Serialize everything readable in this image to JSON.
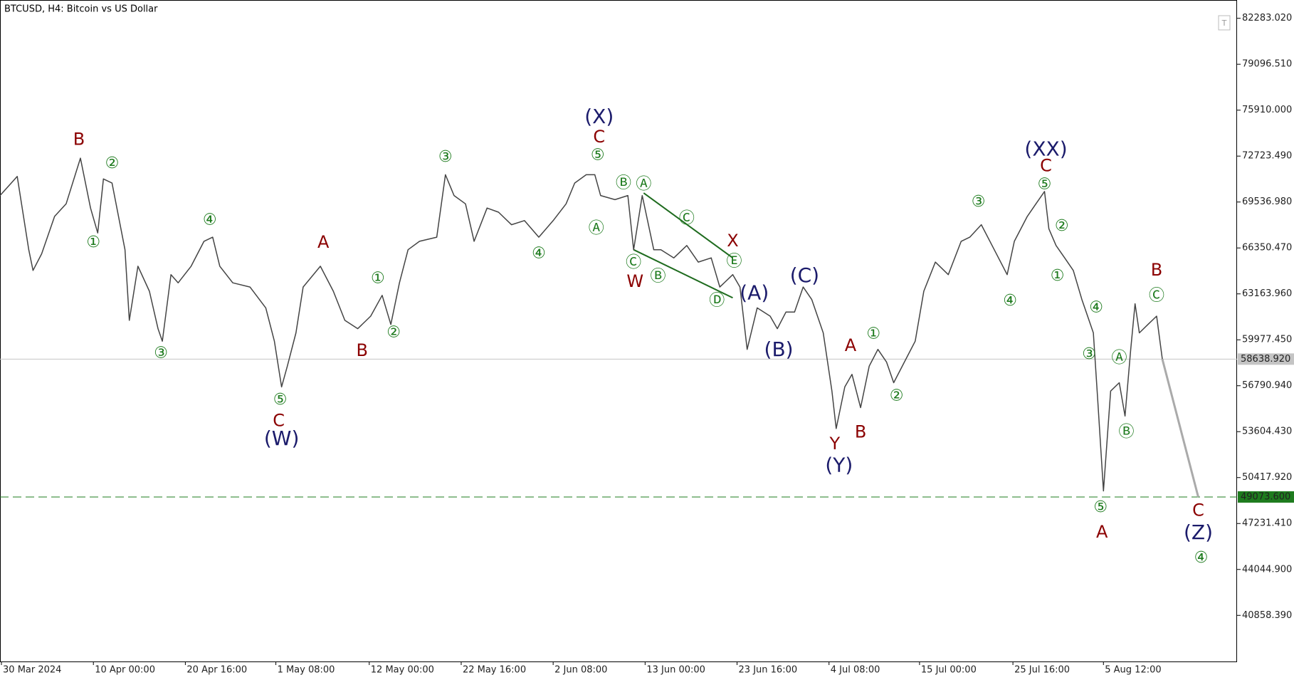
{
  "chart_data": {
    "type": "line",
    "title": "BTCUSD, H4:  Bitcoin vs US Dollar",
    "color": "#444444",
    "x": [
      0,
      12,
      20,
      23,
      29,
      38,
      46,
      56,
      63,
      68,
      72,
      78,
      87,
      90,
      96,
      104,
      110,
      113,
      119,
      124,
      133,
      142,
      148,
      153,
      162,
      174,
      185,
      191,
      196,
      200,
      206,
      211,
      223,
      232,
      240,
      249,
      258,
      266,
      272,
      278,
      284,
      292,
      304,
      310,
      316,
      324,
      330,
      339,
      347,
      356,
      365,
      375,
      385,
      394,
      400,
      408,
      414,
      418,
      428,
      437,
      441,
      447,
      455,
      460,
      469,
      478,
      486,
      495,
      501,
      510,
      515,
      520,
      527,
      536,
      541,
      547,
      553,
      559,
      565,
      573,
      579,
      582,
      588,
      593,
      599,
      605,
      611,
      617,
      622,
      631,
      637,
      643,
      651,
      660,
      669,
      675,
      683,
      692,
      701,
      706,
      715,
      721,
      727,
      730,
      735,
      741,
      747,
      753,
      761,
      764,
      768,
      773,
      779,
      783,
      787,
      790,
      793,
      799,
      805,
      809
    ],
    "values": [
      69990,
      71310,
      66230,
      64790,
      65940,
      68540,
      69410,
      72580,
      69120,
      67390,
      71140,
      70850,
      66230,
      61330,
      65080,
      63350,
      60750,
      59880,
      64500,
      63930,
      65080,
      66810,
      67100,
      65080,
      63930,
      63640,
      62190,
      59880,
      56710,
      58150,
      60460,
      63640,
      65080,
      63350,
      61330,
      60750,
      61620,
      63060,
      61040,
      63930,
      66230,
      66810,
      67100,
      71430,
      69990,
      69410,
      66810,
      69120,
      68830,
      67960,
      68250,
      67100,
      68250,
      69410,
      70850,
      71430,
      71430,
      69990,
      69700,
      69990,
      66230,
      69990,
      66230,
      66230,
      65660,
      66520,
      65370,
      65660,
      63640,
      64500,
      63640,
      59310,
      62190,
      61620,
      60750,
      61900,
      61900,
      63640,
      62770,
      60460,
      56420,
      53820,
      56710,
      57580,
      55270,
      58150,
      59310,
      58440,
      57000,
      58730,
      59880,
      63350,
      65370,
      64500,
      66810,
      67100,
      67960,
      66230,
      64500,
      66810,
      68540,
      69410,
      70270,
      67680,
      66520,
      65660,
      64790,
      62770,
      60460,
      55840,
      49490,
      56420,
      57000,
      54690,
      59310,
      62480,
      60460,
      61040,
      61620,
      58640
    ],
    "forecast": {
      "x": [
        809,
        834
      ],
      "values": [
        58640,
        49073.6
      ],
      "color": "#aaaaaa"
    },
    "xlim": [
      0,
      861
    ],
    "ylim": [
      37660,
      83553
    ],
    "xticks": [
      {
        "value": 1,
        "label": "30 Mar 2024"
      },
      {
        "value": 65,
        "label": "10 Apr 00:00"
      },
      {
        "value": 129,
        "label": "20 Apr 16:00"
      },
      {
        "value": 192,
        "label": "1 May 08:00"
      },
      {
        "value": 257,
        "label": "12 May 00:00"
      },
      {
        "value": 321,
        "label": "22 May 16:00"
      },
      {
        "value": 385,
        "label": "2 Jun 08:00"
      },
      {
        "value": 449,
        "label": "13 Jun 00:00"
      },
      {
        "value": 513,
        "label": "23 Jun 16:00"
      },
      {
        "value": 577,
        "label": "4 Jul 08:00"
      },
      {
        "value": 640,
        "label": "15 Jul 00:00"
      },
      {
        "value": 705,
        "label": "25 Jul 16:00"
      },
      {
        "value": 768,
        "label": "5 Aug 12:00"
      }
    ],
    "yticks": [
      {
        "value": 82283.02,
        "label": "82283.020"
      },
      {
        "value": 79096.51,
        "label": "79096.510"
      },
      {
        "value": 75910,
        "label": "75910.000"
      },
      {
        "value": 72723.49,
        "label": "72723.490"
      },
      {
        "value": 69536.98,
        "label": "69536.980"
      },
      {
        "value": 66350.47,
        "label": "66350.470"
      },
      {
        "value": 63163.96,
        "label": "63163.960"
      },
      {
        "value": 59977.45,
        "label": "59977.450"
      },
      {
        "value": 56790.94,
        "label": "56790.940"
      },
      {
        "value": 53604.43,
        "label": "53604.430"
      },
      {
        "value": 50417.92,
        "label": "50417.920"
      },
      {
        "value": 47231.41,
        "label": "47231.410"
      },
      {
        "value": 44044.9,
        "label": "44044.900"
      },
      {
        "value": 40858.39,
        "label": "40858.390"
      }
    ],
    "price_line": {
      "value": 58638.92,
      "label": "58638.920",
      "color": "#c4c4c4"
    },
    "level_line": {
      "value": 49073.6,
      "label": "49073.600",
      "color": "#1e7b1e"
    },
    "trendlines": [
      {
        "x": [
          448,
          510
        ],
        "y": [
          70160,
          65660
        ],
        "color": "#1e6b1e"
      },
      {
        "x": [
          441,
          510
        ],
        "y": [
          66230,
          62890
        ],
        "color": "#1e6b1e"
      }
    ],
    "annotations": [
      {
        "text": "B",
        "x": 55,
        "y": 73850,
        "color": "#8b0000"
      },
      {
        "text": "②",
        "x": 78,
        "y": 72180,
        "color": "#1e7b1e"
      },
      {
        "text": "①",
        "x": 65,
        "y": 66700,
        "color": "#1e7b1e"
      },
      {
        "text": "③",
        "x": 112,
        "y": 59020,
        "color": "#1e7b1e"
      },
      {
        "text": "④",
        "x": 146,
        "y": 68260,
        "color": "#1e7b1e"
      },
      {
        "text": "A",
        "x": 225,
        "y": 66700,
        "color": "#8b0000"
      },
      {
        "text": "①",
        "x": 263,
        "y": 64210,
        "color": "#1e7b1e"
      },
      {
        "text": "B",
        "x": 252,
        "y": 59190,
        "color": "#8b0000"
      },
      {
        "text": "②",
        "x": 274,
        "y": 60460,
        "color": "#1e7b1e"
      },
      {
        "text": "⑤",
        "x": 195,
        "y": 55790,
        "color": "#1e7b1e"
      },
      {
        "text": "C",
        "x": 194,
        "y": 54340,
        "color": "#8b0000"
      },
      {
        "text": "(W)",
        "x": 196,
        "y": 53070,
        "color": "#1b1b6b"
      },
      {
        "text": "③",
        "x": 310,
        "y": 72640,
        "color": "#1e7b1e"
      },
      {
        "text": "④",
        "x": 375,
        "y": 65950,
        "color": "#1e7b1e"
      },
      {
        "text": "(X)",
        "x": 417,
        "y": 75410,
        "color": "#1b1b6b"
      },
      {
        "text": "C",
        "x": 417,
        "y": 74030,
        "color": "#8b0000"
      },
      {
        "text": "⑤",
        "x": 416,
        "y": 72760,
        "color": "#1e7b1e"
      },
      {
        "text": "Ⓐ",
        "x": 415,
        "y": 67680,
        "color": "#1e7b1e"
      },
      {
        "text": "Ⓑ",
        "x": 434,
        "y": 70800,
        "color": "#1e7b1e"
      },
      {
        "text": "Ⓐ",
        "x": 448,
        "y": 70740,
        "color": "#1e7b1e"
      },
      {
        "text": "Ⓒ",
        "x": 478,
        "y": 68370,
        "color": "#1e7b1e"
      },
      {
        "text": "X",
        "x": 510,
        "y": 66810,
        "color": "#8b0000"
      },
      {
        "text": "Ⓔ",
        "x": 511,
        "y": 65370,
        "color": "#1e7b1e"
      },
      {
        "text": "Ⓒ",
        "x": 441,
        "y": 65310,
        "color": "#1e7b1e"
      },
      {
        "text": "Ⓑ",
        "x": 458,
        "y": 64330,
        "color": "#1e7b1e"
      },
      {
        "text": "W",
        "x": 442,
        "y": 63980,
        "color": "#8b0000"
      },
      {
        "text": "Ⓓ",
        "x": 499,
        "y": 62660,
        "color": "#1e7b1e"
      },
      {
        "text": "(A)",
        "x": 525,
        "y": 63170,
        "color": "#1b1b6b"
      },
      {
        "text": "(C)",
        "x": 560,
        "y": 64390,
        "color": "#1b1b6b"
      },
      {
        "text": "(B)",
        "x": 542,
        "y": 59250,
        "color": "#1b1b6b"
      },
      {
        "text": "A",
        "x": 592,
        "y": 59540,
        "color": "#8b0000"
      },
      {
        "text": "①",
        "x": 608,
        "y": 60350,
        "color": "#1e7b1e"
      },
      {
        "text": "②",
        "x": 624,
        "y": 56070,
        "color": "#1e7b1e"
      },
      {
        "text": "Y",
        "x": 581,
        "y": 52730,
        "color": "#8b0000"
      },
      {
        "text": "B",
        "x": 599,
        "y": 53530,
        "color": "#8b0000"
      },
      {
        "text": "(Y)",
        "x": 584,
        "y": 51220,
        "color": "#1b1b6b"
      },
      {
        "text": "③",
        "x": 681,
        "y": 69530,
        "color": "#1e7b1e"
      },
      {
        "text": "④",
        "x": 703,
        "y": 62660,
        "color": "#1e7b1e"
      },
      {
        "text": "(XX)",
        "x": 728,
        "y": 73160,
        "color": "#1b1b6b"
      },
      {
        "text": "C",
        "x": 728,
        "y": 72010,
        "color": "#8b0000"
      },
      {
        "text": "⑤",
        "x": 727,
        "y": 70740,
        "color": "#1e7b1e"
      },
      {
        "text": "②",
        "x": 739,
        "y": 67850,
        "color": "#1e7b1e"
      },
      {
        "text": "①",
        "x": 736,
        "y": 64390,
        "color": "#1e7b1e"
      },
      {
        "text": "④",
        "x": 763,
        "y": 62190,
        "color": "#1e7b1e"
      },
      {
        "text": "③",
        "x": 758,
        "y": 58960,
        "color": "#1e7b1e"
      },
      {
        "text": "Ⓐ",
        "x": 779,
        "y": 58670,
        "color": "#1e7b1e"
      },
      {
        "text": "Ⓑ",
        "x": 784,
        "y": 53530,
        "color": "#1e7b1e"
      },
      {
        "text": "⑤",
        "x": 766,
        "y": 48340,
        "color": "#1e7b1e"
      },
      {
        "text": "A",
        "x": 767,
        "y": 46610,
        "color": "#8b0000"
      },
      {
        "text": "B",
        "x": 805,
        "y": 64790,
        "color": "#8b0000"
      },
      {
        "text": "Ⓒ",
        "x": 805,
        "y": 63000,
        "color": "#1e7b1e"
      },
      {
        "text": "C",
        "x": 834,
        "y": 48110,
        "color": "#8b0000"
      },
      {
        "text": "(Z)",
        "x": 834,
        "y": 46550,
        "color": "#1b1b6b"
      },
      {
        "text": "④",
        "x": 836,
        "y": 44820,
        "color": "#1e7b1e"
      }
    ]
  }
}
